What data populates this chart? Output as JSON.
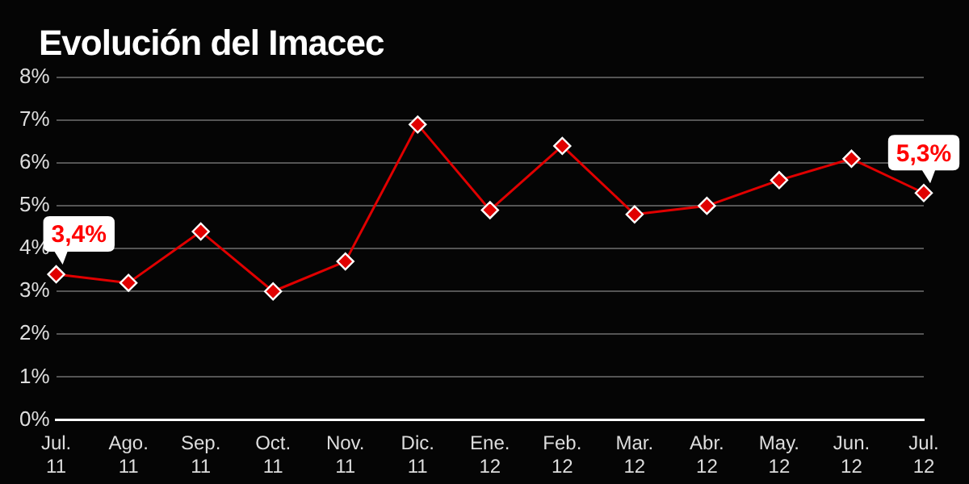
{
  "chart_data": {
    "type": "line",
    "title": "Evolución del Imacec",
    "categories": [
      "Jul. 11",
      "Ago. 11",
      "Sep. 11",
      "Oct. 11",
      "Nov. 11",
      "Dic. 11",
      "Ene. 12",
      "Feb. 12",
      "Mar. 12",
      "Abr. 12",
      "May. 12",
      "Jun. 12",
      "Jul. 12"
    ],
    "series": [
      {
        "color": "#e00000",
        "values": [
          3.4,
          3.2,
          4.4,
          3.0,
          3.7,
          6.9,
          4.9,
          6.4,
          4.8,
          5.0,
          5.6,
          6.1,
          5.3
        ]
      }
    ],
    "ylim": [
      0,
      8
    ],
    "yticks": [
      {
        "value": 0,
        "label": "0%"
      },
      {
        "value": 1,
        "label": "1%"
      },
      {
        "value": 2,
        "label": "2%"
      },
      {
        "value": 3,
        "label": "3%"
      },
      {
        "value": 4,
        "label": "4%"
      },
      {
        "value": 5,
        "label": "5%"
      },
      {
        "value": 6,
        "label": "6%"
      },
      {
        "value": 7,
        "label": "7%"
      },
      {
        "value": 8,
        "label": "8%"
      }
    ],
    "annotations": [
      {
        "text": "3,4%",
        "x": "Jul. 11",
        "y": 3.4
      },
      {
        "text": "5,3%",
        "x": "Jul. 12",
        "y": 5.3
      }
    ],
    "grid": "y",
    "marker": "diamond",
    "line_style": "solid",
    "legend": false
  }
}
